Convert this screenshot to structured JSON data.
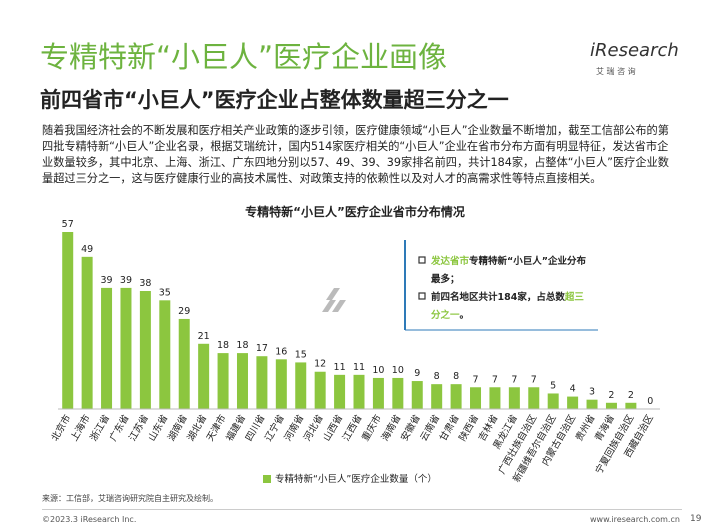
{
  "header": {
    "title": "专精特新“小巨人”医疗企业画像",
    "subtitle": "前四省市“小巨人”医疗企业占整体数量超三分之一",
    "logo": "iResearch",
    "logo_sub": "艾 瑞 咨 询"
  },
  "paragraph": "随着我国经济社会的不断发展和医疗相关产业政策的逐步引领，医疗健康领域“小巨人”企业数量不断增加，截至工信部公布的第四批专精特新“小巨人”企业名录，根据艾瑞统计，国内514家医疗相关的“小巨人”企业在省市分布方面有明显特征，发达省市企业数量较多，其中北京、上海、浙江、广东四地分别以57、49、39、39家排名前四，共计184家，占整体“小巨人”医疗企业数量超过三分之一，这与医疗健康行业的高技术属性、对政策支持的依赖性以及对人才的高需求性等特点直接相关。",
  "chart_data": {
    "type": "bar",
    "title": "专精特新“小巨人”医疗企业省市分布情况",
    "categories": [
      "北京市",
      "上海市",
      "浙江省",
      "广东省",
      "江苏省",
      "山东省",
      "湖南省",
      "湖北省",
      "天津市",
      "福建省",
      "四川省",
      "辽宁省",
      "河南省",
      "河北省",
      "山西省",
      "江西省",
      "重庆市",
      "海南省",
      "安徽省",
      "云南省",
      "甘肃省",
      "陕西省",
      "吉林省",
      "黑龙江省",
      "广西壮族自治区",
      "新疆维吾尔自治区",
      "内蒙古自治区",
      "贵州省",
      "青海省",
      "宁夏回族自治区",
      "西藏自治区"
    ],
    "series": [
      {
        "name": "专精特新“小巨人”医疗企业数量（个）",
        "color": "#8cc63f",
        "values": [
          57,
          49,
          39,
          39,
          38,
          35,
          29,
          21,
          18,
          18,
          17,
          16,
          15,
          12,
          11,
          11,
          10,
          10,
          9,
          8,
          8,
          7,
          7,
          7,
          7,
          5,
          4,
          3,
          2,
          2,
          0
        ]
      }
    ],
    "legend": "bottom"
  },
  "callout": [
    [
      {
        "text": "发达省市",
        "highlight": true
      },
      {
        "text": "专精特新“小巨人”企业分布最多；",
        "highlight": false
      }
    ],
    [
      {
        "text": "前四名地区共计184家，占总数",
        "highlight": false
      },
      {
        "text": "超三分之一",
        "highlight": true
      },
      {
        "text": "。",
        "highlight": false
      }
    ]
  ],
  "source": "来源：工信部，艾瑞咨询研究院自主研究及绘制。",
  "footer": {
    "copyright": "©2023.3 iResearch Inc.",
    "website": "www.iresearch.com.cn",
    "page": "19"
  }
}
